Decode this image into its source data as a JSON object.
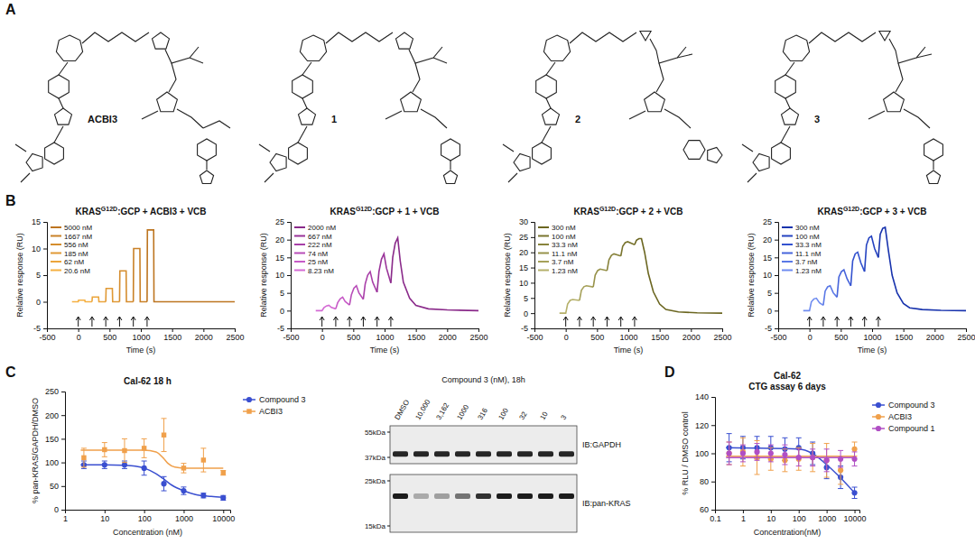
{
  "panel_labels": [
    "A",
    "B",
    "C",
    "D"
  ],
  "structures": [
    {
      "label": "ACBI3"
    },
    {
      "label": "1"
    },
    {
      "label": "2"
    },
    {
      "label": "3"
    }
  ],
  "chart_data": [
    {
      "type": "line",
      "title": "KRASG12D:GCP + ACBI3 + VCB",
      "x_label": "Time (s)",
      "y_label": "Relative response (RU)",
      "xlim": [
        -500,
        2500
      ],
      "xticks": [
        -500,
        0,
        500,
        1000,
        1500,
        2000,
        2500
      ],
      "ylim": [
        -5,
        15
      ],
      "yticks": [
        -5,
        0,
        5,
        10,
        15
      ],
      "legend": "upper left",
      "injections": [
        0,
        220,
        440,
        660,
        880,
        1100
      ],
      "series": [
        {
          "name": "20.6 nM",
          "color": "#f5b041",
          "x": [
            -100,
            0,
            5,
            105,
            110,
            220
          ],
          "values": [
            0,
            0,
            0.3,
            0.3,
            0,
            0
          ]
        },
        {
          "name": "62 nM",
          "color": "#eba53c",
          "x": [
            220,
            225,
            325,
            330,
            440
          ],
          "values": [
            0,
            0.9,
            0.9,
            0,
            0
          ]
        },
        {
          "name": "185 nM",
          "color": "#e09935",
          "x": [
            440,
            445,
            545,
            550,
            660
          ],
          "values": [
            0,
            2.5,
            2.5,
            0,
            0
          ]
        },
        {
          "name": "556 nM",
          "color": "#d58d2e",
          "x": [
            660,
            665,
            765,
            770,
            880
          ],
          "values": [
            0,
            5.8,
            5.8,
            0,
            0
          ]
        },
        {
          "name": "1667 nM",
          "color": "#c98127",
          "x": [
            880,
            885,
            985,
            990,
            1100
          ],
          "values": [
            0,
            10,
            10,
            0,
            0
          ]
        },
        {
          "name": "5000 nM",
          "color": "#bd7520",
          "x": [
            1100,
            1105,
            1205,
            1210,
            2500
          ],
          "values": [
            0,
            13.5,
            13.5,
            0,
            0
          ]
        }
      ]
    },
    {
      "type": "line",
      "title": "KRASG12D:GCP + 1 + VCB",
      "x_label": "Time (s)",
      "y_label": "Relative response (RU)",
      "xlim": [
        -500,
        2500
      ],
      "xticks": [
        -500,
        0,
        500,
        1000,
        1500,
        2000,
        2500
      ],
      "ylim": [
        -5,
        25
      ],
      "yticks": [
        -5,
        0,
        5,
        10,
        15,
        20,
        25
      ],
      "legend": "upper left",
      "injections": [
        0,
        220,
        440,
        660,
        880,
        1100
      ],
      "series": [
        {
          "name": "8.23 nM",
          "color": "#d46ad4",
          "x": [
            -100,
            0,
            30,
            70,
            110,
            150,
            220
          ],
          "values": [
            0,
            0,
            0.8,
            1.3,
            1.5,
            0.9,
            0.5
          ]
        },
        {
          "name": "25 nM",
          "color": "#c75bc7",
          "x": [
            220,
            250,
            290,
            330,
            370,
            440
          ],
          "values": [
            0.5,
            2.2,
            3.3,
            3.8,
            2.6,
            1.6
          ]
        },
        {
          "name": "74 nM",
          "color": "#b84db8",
          "x": [
            440,
            470,
            510,
            550,
            590,
            660
          ],
          "values": [
            1.6,
            4.5,
            6.3,
            7,
            5,
            3.2
          ]
        },
        {
          "name": "222 nM",
          "color": "#a83fa8",
          "x": [
            660,
            690,
            730,
            770,
            810,
            880
          ],
          "values": [
            3.2,
            7.5,
            10,
            11,
            8,
            5.2
          ]
        },
        {
          "name": "667 nM",
          "color": "#993399",
          "x": [
            880,
            910,
            950,
            990,
            1030,
            1100
          ],
          "values": [
            5.2,
            11,
            14.5,
            16,
            12,
            7.8
          ]
        },
        {
          "name": "2000 nM",
          "color": "#8a2a8a",
          "x": [
            1100,
            1130,
            1170,
            1210,
            1250,
            1300,
            1400,
            1500,
            1700,
            2000,
            2500
          ],
          "values": [
            7.8,
            15,
            19,
            20.5,
            14,
            8,
            3.5,
            1.5,
            0.5,
            0.2,
            0
          ]
        }
      ]
    },
    {
      "type": "line",
      "title": "KRASG12D:GCP + 2 + VCB",
      "x_label": "Time (s)",
      "y_label": "Relative response (RU)",
      "xlim": [
        -500,
        2500
      ],
      "xticks": [
        -500,
        0,
        500,
        1000,
        1500,
        2000,
        2500
      ],
      "ylim": [
        -5,
        30
      ],
      "yticks": [
        -5,
        0,
        5,
        10,
        15,
        20,
        25,
        30
      ],
      "legend": "upper left",
      "injections": [
        0,
        220,
        440,
        660,
        880,
        1100
      ],
      "series": [
        {
          "name": "1.23 nM",
          "color": "#b5b06a",
          "x": [
            -100,
            0,
            30,
            70,
            110,
            220
          ],
          "values": [
            0,
            0,
            3,
            4.2,
            4.5,
            4.2
          ]
        },
        {
          "name": "3.7 nM",
          "color": "#a6a15a",
          "x": [
            220,
            250,
            290,
            330,
            440
          ],
          "values": [
            4.2,
            7.5,
            8.7,
            9,
            8.6
          ]
        },
        {
          "name": "11.1 nM",
          "color": "#97924a",
          "x": [
            440,
            470,
            510,
            550,
            660
          ],
          "values": [
            8.6,
            12.5,
            14,
            14.5,
            14
          ]
        },
        {
          "name": "33.3 nM",
          "color": "#88833c",
          "x": [
            660,
            690,
            730,
            770,
            880
          ],
          "values": [
            14,
            17.5,
            19,
            19.5,
            18.8
          ]
        },
        {
          "name": "100 nM",
          "color": "#79742e",
          "x": [
            880,
            910,
            950,
            990,
            1100
          ],
          "values": [
            18.8,
            22,
            23.2,
            23.5,
            22.5
          ]
        },
        {
          "name": "300 nM",
          "color": "#6b6620",
          "x": [
            1100,
            1130,
            1170,
            1210,
            1260,
            1320,
            1400,
            1500,
            1600,
            1800,
            2100,
            2500
          ],
          "values": [
            22.5,
            24,
            24.5,
            24.5,
            20,
            13,
            7,
            3,
            1.2,
            0.4,
            0.1,
            0
          ]
        }
      ]
    },
    {
      "type": "line",
      "title": "KRASG12D:GCP + 3 + VCB",
      "x_label": "Time (s)",
      "y_label": "Relative response (RU)",
      "xlim": [
        -500,
        2500
      ],
      "xticks": [
        -500,
        0,
        500,
        1000,
        1500,
        2000,
        2500
      ],
      "ylim": [
        -5,
        25
      ],
      "yticks": [
        -5,
        0,
        5,
        10,
        15,
        20,
        25
      ],
      "legend": "upper left",
      "injections": [
        0,
        220,
        440,
        660,
        880,
        1100
      ],
      "series": [
        {
          "name": "1.23 nM",
          "color": "#6f8cf0",
          "x": [
            -100,
            0,
            30,
            70,
            110,
            160,
            220
          ],
          "values": [
            0,
            0,
            2.5,
            3.3,
            3.5,
            2.2,
            1.5
          ]
        },
        {
          "name": "3.7 nM",
          "color": "#5a78e6",
          "x": [
            220,
            250,
            290,
            330,
            380,
            440
          ],
          "values": [
            1.5,
            5.5,
            6.7,
            7,
            5,
            3.8
          ]
        },
        {
          "name": "11.1 nM",
          "color": "#4664db",
          "x": [
            440,
            470,
            510,
            550,
            600,
            660
          ],
          "values": [
            3.8,
            9.5,
            11,
            11.5,
            9,
            7
          ]
        },
        {
          "name": "33.3 nM",
          "color": "#3352cf",
          "x": [
            660,
            690,
            730,
            770,
            820,
            880
          ],
          "values": [
            7,
            14,
            16,
            16.5,
            13.5,
            11
          ]
        },
        {
          "name": "100 nM",
          "color": "#2442c0",
          "x": [
            880,
            910,
            950,
            990,
            1040,
            1100
          ],
          "values": [
            11,
            18.5,
            20.5,
            21,
            17.5,
            15
          ]
        },
        {
          "name": "300 nM",
          "color": "#1833ad",
          "x": [
            1100,
            1130,
            1170,
            1210,
            1260,
            1320,
            1400,
            1500,
            1600,
            1800,
            2100,
            2500
          ],
          "values": [
            15,
            21.5,
            23.2,
            23.5,
            17,
            10,
            5,
            2,
            0.8,
            0.3,
            0.1,
            0
          ]
        }
      ]
    },
    {
      "type": "scatter",
      "title": "Cal-62 18 h",
      "x_label": "Concentration (nM)",
      "y_label": "% pan-KRAS/GAPDH/DMSO",
      "log": "x",
      "xlim": [
        1,
        15000
      ],
      "xticks": [
        1,
        10,
        100,
        1000,
        10000
      ],
      "ylim": [
        0,
        250
      ],
      "yticks": [
        0,
        50,
        100,
        150,
        200,
        250
      ],
      "legend": "right",
      "series": [
        {
          "name": "Compound 3",
          "color": "#3a4fd0",
          "marker": "circle",
          "x": [
            3,
            10,
            32,
            100,
            316,
            1000,
            3162,
            10000
          ],
          "values": [
            95,
            95,
            95,
            88,
            55,
            40,
            30,
            25
          ],
          "errors": [
            8,
            8,
            8,
            15,
            15,
            8,
            5,
            5
          ],
          "fit_x": [
            2.5,
            10,
            30,
            60,
            100,
            200,
            300,
            500,
            1000,
            2000,
            5000,
            10000
          ],
          "fit_values": [
            95,
            95,
            94,
            92,
            88,
            76,
            66,
            52,
            40,
            32,
            28,
            26
          ]
        },
        {
          "name": "ACBI3",
          "color": "#f0a04b",
          "marker": "square",
          "x": [
            3,
            10,
            32,
            100,
            316,
            1000,
            3162,
            10000
          ],
          "values": [
            110,
            127,
            125,
            130,
            158,
            88,
            105,
            78
          ],
          "errors": [
            20,
            15,
            25,
            20,
            35,
            10,
            25,
            5
          ],
          "fit_x": [
            2.5,
            100,
            200,
            300,
            400,
            600,
            1000,
            10000
          ],
          "fit_values": [
            126,
            126,
            122,
            110,
            98,
            90,
            88,
            88
          ]
        }
      ]
    },
    {
      "type": "scatter",
      "title": "Cal-62",
      "subtitle": "CTG assay 6 days",
      "x_label": "Concentration(nM)",
      "y_label": "% RLU / DMSO control",
      "log": "x",
      "xlim": [
        0.1,
        15000
      ],
      "xticks": [
        0.1,
        1,
        10,
        100,
        1000,
        10000
      ],
      "ylim": [
        60,
        140
      ],
      "yticks": [
        60,
        80,
        100,
        120,
        140
      ],
      "legend": "right",
      "series": [
        {
          "name": "Compound 3",
          "color": "#3a4fd0",
          "marker": "circle",
          "x": [
            0.32,
            1,
            3.2,
            10,
            32,
            100,
            316,
            1000,
            3162,
            10000
          ],
          "values": [
            104,
            104,
            104,
            104,
            103,
            104,
            100,
            90,
            83,
            72
          ],
          "errors": [
            10,
            8,
            8,
            8,
            8,
            7,
            8,
            8,
            8,
            4
          ],
          "fit_x": [
            0.25,
            100,
            300,
            1000,
            3000,
            10000
          ],
          "fit_values": [
            104,
            103,
            100,
            92,
            83,
            72
          ]
        },
        {
          "name": "ACBI3",
          "color": "#f0a04b",
          "marker": "circle",
          "x": [
            0.32,
            1,
            3.2,
            10,
            32,
            100,
            316,
            1000,
            3162,
            10000
          ],
          "values": [
            100,
            101,
            97,
            96,
            95,
            96,
            97,
            95,
            88,
            103
          ],
          "errors": [
            8,
            10,
            12,
            8,
            8,
            8,
            10,
            12,
            10,
            5
          ],
          "fit_x": [
            0.25,
            10000
          ],
          "fit_values": [
            98,
            98
          ]
        },
        {
          "name": "Compound 1",
          "color": "#b04fc4",
          "marker": "circle",
          "x": [
            0.32,
            1,
            3.2,
            10,
            32,
            100,
            316,
            1000,
            3162,
            10000
          ],
          "values": [
            100,
            100,
            101,
            100,
            99,
            97,
            97,
            95,
            96,
            96
          ],
          "errors": [
            8,
            6,
            6,
            6,
            7,
            6,
            6,
            8,
            6,
            5
          ],
          "fit_x": [
            0.25,
            10000
          ],
          "fit_values": [
            97,
            97
          ]
        }
      ]
    }
  ],
  "blot": {
    "title": "Compound 3 (nM), 18h",
    "lanes": [
      "DMSO",
      "10,000",
      "3,162",
      "1000",
      "316",
      "100",
      "32",
      "10",
      "3"
    ],
    "rows": [
      {
        "label": "IB:GAPDH",
        "markers": [
          {
            "value": 55,
            "label": "55kDa"
          },
          {
            "value": 37,
            "label": "37kDa"
          }
        ],
        "band_kda": 39,
        "intensity": [
          0.9,
          0.9,
          0.9,
          0.9,
          0.9,
          0.9,
          0.9,
          0.9,
          0.9
        ]
      },
      {
        "label": "IB:pan-KRAS",
        "markers": [
          {
            "value": 25,
            "label": "25kDa"
          },
          {
            "value": 15,
            "label": "15kDa"
          }
        ],
        "band_kda": 21,
        "intensity": [
          0.95,
          0.3,
          0.35,
          0.55,
          0.85,
          0.95,
          0.95,
          0.95,
          0.95
        ]
      }
    ]
  }
}
